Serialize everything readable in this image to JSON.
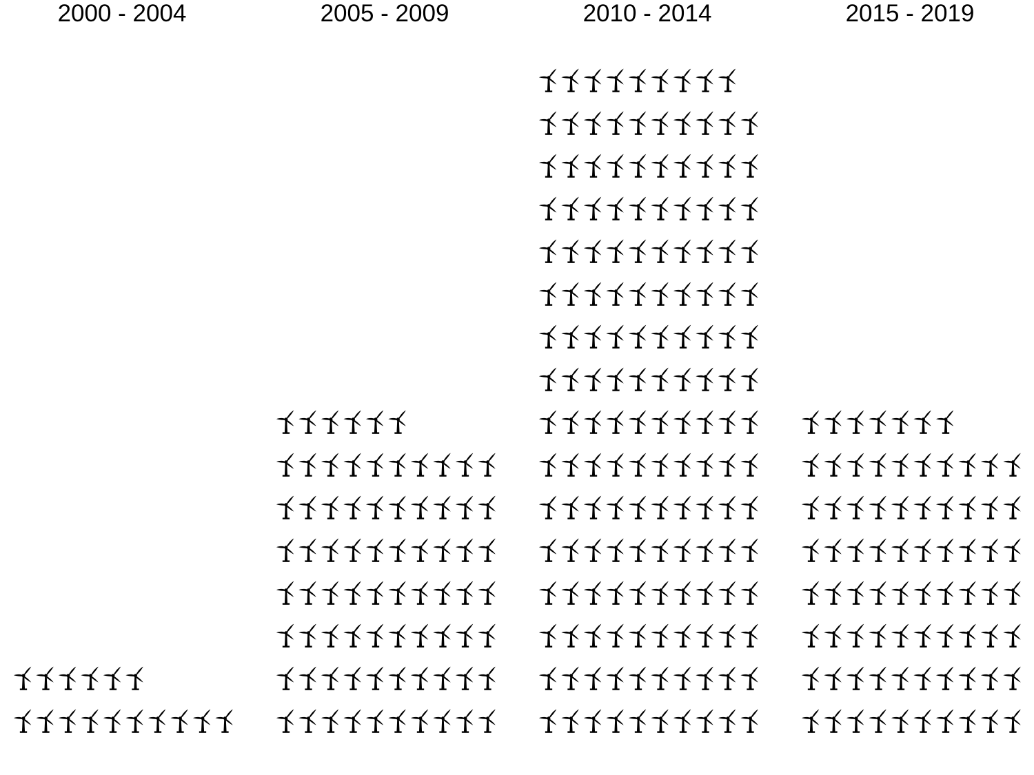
{
  "chart_data": {
    "type": "bar",
    "subtype": "pictograph waffle (faceted)",
    "icon": "wind-turbine-icon",
    "icon_color": "#000000",
    "background": "#ffffff",
    "grid": false,
    "legend": "none",
    "icons_per_row": 10,
    "categories": [
      "2000 - 2004",
      "2005 - 2009",
      "2010 - 2014",
      "2015 - 2019"
    ],
    "values": [
      16,
      76,
      159,
      77
    ]
  }
}
